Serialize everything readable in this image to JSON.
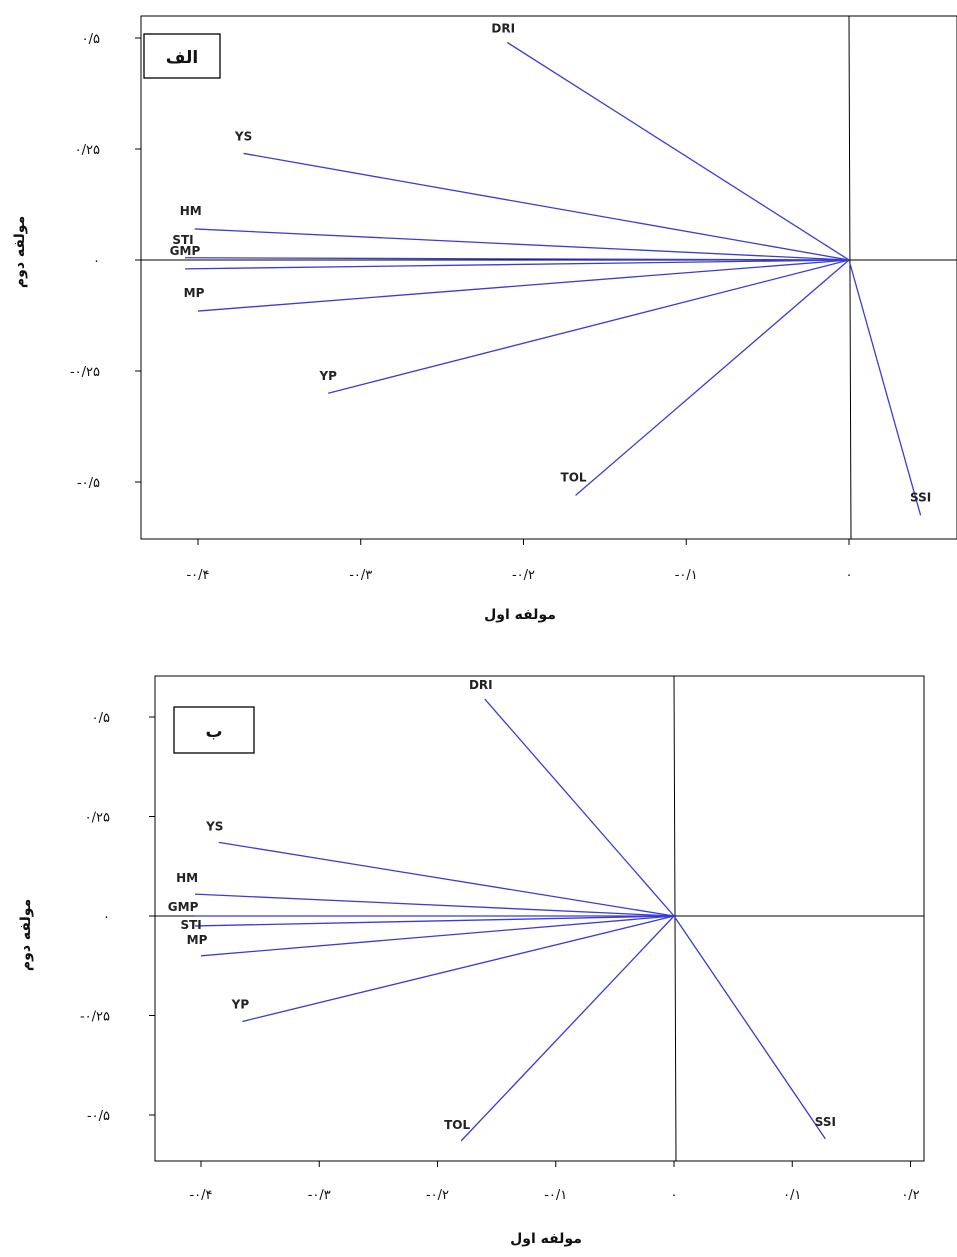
{
  "chart_data": [
    {
      "type": "biplot",
      "panel_label": "الف",
      "xlabel": "مولفه اول",
      "ylabel": "مولفه دوم",
      "xlim": [
        -0.43,
        0.065
      ],
      "ylim": [
        -0.63,
        0.55
      ],
      "x_ticks": [
        -0.4,
        -0.3,
        -0.2,
        -0.1,
        0
      ],
      "x_tick_labels": [
        "-۰/۴",
        "-۰/۳",
        "-۰/۲",
        "-۰/۱",
        "۰"
      ],
      "y_ticks": [
        0.5,
        0.25,
        0,
        -0.25,
        -0.5
      ],
      "y_tick_labels": [
        "۰/۵",
        "۰/۲۵",
        "۰",
        "-۰/۲۵",
        "-۰/۵"
      ],
      "origin": [
        0,
        0
      ],
      "vectors": [
        {
          "label": "DRI",
          "x": -0.21,
          "y": 0.49
        },
        {
          "label": "YS",
          "x": -0.372,
          "y": 0.24
        },
        {
          "label": "HM",
          "x": -0.402,
          "y": 0.07
        },
        {
          "label": "STI",
          "x": -0.408,
          "y": 0.005
        },
        {
          "label": "GMP",
          "x": -0.408,
          "y": -0.02
        },
        {
          "label": "MP",
          "x": -0.4,
          "y": -0.115
        },
        {
          "label": "YP",
          "x": -0.32,
          "y": -0.3
        },
        {
          "label": "TOL",
          "x": -0.168,
          "y": -0.53
        },
        {
          "label": "SSI",
          "x": 0.044,
          "y": -0.575
        }
      ]
    },
    {
      "type": "biplot",
      "panel_label": "ب",
      "xlabel": "مولفه اول",
      "ylabel": "مولفه دوم",
      "xlim": [
        -0.44,
        0.21
      ],
      "ylim": [
        -0.62,
        0.59
      ],
      "x_ticks": [
        -0.4,
        -0.3,
        -0.2,
        -0.1,
        0,
        0.1,
        0.2
      ],
      "x_tick_labels": [
        "-۰/۴",
        "-۰/۳",
        "-۰/۲",
        "-۰/۱",
        "۰",
        "۰/۱",
        "۰/۲"
      ],
      "y_ticks": [
        0.5,
        0.25,
        0,
        -0.25,
        -0.5
      ],
      "y_tick_labels": [
        "۰/۵",
        "۰/۲۵",
        "۰",
        "-۰/۲۵",
        "-۰/۵"
      ],
      "origin": [
        0,
        0
      ],
      "vectors": [
        {
          "label": "DRI",
          "x": -0.16,
          "y": 0.545
        },
        {
          "label": "YS",
          "x": -0.385,
          "y": 0.185
        },
        {
          "label": "HM",
          "x": -0.405,
          "y": 0.055
        },
        {
          "label": "GMP",
          "x": -0.405,
          "y": 0.0
        },
        {
          "label": "STI",
          "x": -0.405,
          "y": -0.025
        },
        {
          "label": "MP",
          "x": -0.4,
          "y": -0.1
        },
        {
          "label": "YP",
          "x": -0.365,
          "y": -0.265
        },
        {
          "label": "TOL",
          "x": -0.18,
          "y": -0.565
        },
        {
          "label": "SSI",
          "x": 0.128,
          "y": -0.56
        }
      ]
    }
  ]
}
